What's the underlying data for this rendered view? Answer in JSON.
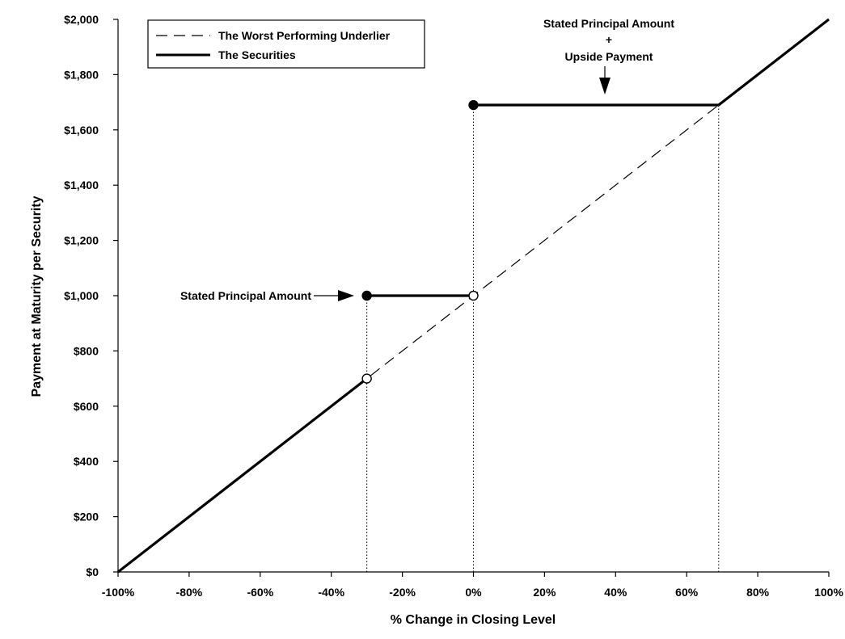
{
  "chart_data": {
    "type": "line",
    "title": "",
    "xlabel": "% Change in Closing Level",
    "ylabel": "Payment at Maturity per Security",
    "xlim": [
      -100,
      100
    ],
    "ylim": [
      0,
      2000
    ],
    "x_ticks": [
      "-100%",
      "-80%",
      "-60%",
      "-40%",
      "-20%",
      "0%",
      "20%",
      "40%",
      "60%",
      "80%",
      "100%"
    ],
    "y_ticks": [
      "$0",
      "$200",
      "$400",
      "$600",
      "$800",
      "$1,000",
      "$1,200",
      "$1,400",
      "$1,600",
      "$1,800",
      "$2,000"
    ],
    "grid": false,
    "legend_position": "top-left",
    "legend": [
      "The Worst Performing Underlier",
      "The Securities"
    ],
    "series": [
      {
        "name": "The Worst Performing Underlier",
        "style": "dashed",
        "points": [
          [
            -100,
            0
          ],
          [
            100,
            2000
          ]
        ]
      },
      {
        "name": "The Securities",
        "style": "solid",
        "segments": [
          [
            [
              -100,
              0
            ],
            [
              -30,
              700
            ]
          ],
          [
            [
              -30,
              1000
            ],
            [
              0,
              1000
            ]
          ],
          [
            [
              0,
              1690
            ],
            [
              69,
              1690
            ]
          ],
          [
            [
              69,
              1690
            ],
            [
              100,
              2000
            ]
          ]
        ]
      }
    ],
    "markers": [
      {
        "x": -30,
        "y": 700,
        "fill": "open"
      },
      {
        "x": -30,
        "y": 1000,
        "fill": "filled"
      },
      {
        "x": 0,
        "y": 1000,
        "fill": "open"
      },
      {
        "x": 0,
        "y": 1690,
        "fill": "filled"
      }
    ],
    "reference_lines": [
      {
        "x": -30,
        "y_to": 1000
      },
      {
        "x": 0,
        "y_to": 1690
      },
      {
        "x": 69,
        "y_to": 1690
      }
    ],
    "annotations": [
      {
        "text": "Stated Principal Amount",
        "x": -30,
        "y": 1000
      },
      {
        "lines": [
          "Stated Principal Amount",
          "+",
          "Upside Payment"
        ],
        "x": 38,
        "y": 1690
      }
    ]
  }
}
